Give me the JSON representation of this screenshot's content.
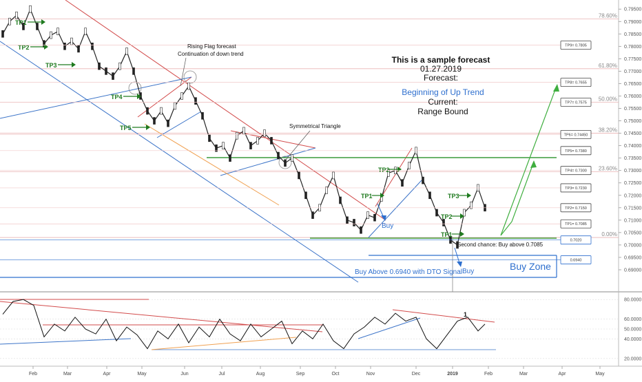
{
  "forecast": {
    "heading": "This is a sample forecast",
    "date": "01.27.2019",
    "forecast_label": "Forecast:",
    "forecast_value": "Beginning of Up Trend",
    "current_label": "Current:",
    "current_value": "Range Bound",
    "accent": "#2e6fce"
  },
  "annotations": {
    "rising_flag": [
      "Rising Flag forecast",
      "Continuation of down trend"
    ],
    "symmetrical_triangle": "Symmetrical Triangle",
    "second_chance": "Second chance: Buy above 0.7085",
    "buy_above": "Buy Above 0.6940 with DTO Signal",
    "buy_zone": "Buy Zone",
    "buy": "Buy",
    "oscillator_mark": "1"
  },
  "chart_data": [
    {
      "type": "line",
      "name": "price",
      "y_axis_ticks": [
        "0.79500",
        "0.79000",
        "0.78500",
        "0.78000",
        "0.77500",
        "0.77000",
        "0.76500",
        "0.76000",
        "0.75500",
        "0.75000",
        "0.74500",
        "0.74000",
        "0.73500",
        "0.73000",
        "0.72500",
        "0.72000",
        "0.71500",
        "0.71000",
        "0.70500",
        "0.70000",
        "0.69500",
        "0.69000"
      ],
      "ylim": [
        0.6875,
        0.797
      ],
      "x_axis_ticks": [
        "Feb",
        "Mar",
        "Apr",
        "May",
        "Jun",
        "Jul",
        "Aug",
        "Sep",
        "Oct",
        "Nov",
        "Dec",
        "2019",
        "Feb",
        "Mar",
        "Apr",
        "May"
      ],
      "series": [
        {
          "x": [
            0,
            10,
            20,
            30,
            40,
            50,
            60,
            70,
            80,
            90,
            100,
            110,
            120,
            130,
            140,
            150,
            160,
            170,
            180,
            190,
            200,
            210,
            220,
            230,
            240,
            250,
            260,
            270,
            280,
            290,
            300,
            310,
            320,
            330,
            340,
            350,
            360,
            370,
            380,
            390,
            400,
            410,
            420,
            430,
            440,
            450,
            460,
            470,
            480,
            490,
            500,
            510,
            520,
            530,
            540,
            550,
            560,
            570,
            580,
            590,
            600,
            610,
            620,
            630,
            640,
            650,
            660,
            670,
            680,
            690,
            700
          ],
          "y": [
            0.785,
            0.79,
            0.7925,
            0.788,
            0.795,
            0.788,
            0.781,
            0.7845,
            0.786,
            0.78,
            0.782,
            0.779,
            0.786,
            0.78,
            0.772,
            0.77,
            0.768,
            0.772,
            0.778,
            0.77,
            0.76,
            0.754,
            0.75,
            0.754,
            0.749,
            0.756,
            0.76,
            0.764,
            0.758,
            0.752,
            0.743,
            0.739,
            0.74,
            0.735,
            0.744,
            0.746,
            0.74,
            0.742,
            0.745,
            0.742,
            0.736,
            0.733,
            0.735,
            0.728,
            0.72,
            0.712,
            0.715,
            0.722,
            0.728,
            0.718,
            0.71,
            0.709,
            0.706,
            0.712,
            0.711,
            0.719,
            0.729,
            0.73,
            0.725,
            0.732,
            0.738,
            0.726,
            0.72,
            0.713,
            0.709,
            0.702,
            0.7,
            0.713,
            0.716,
            0.723,
            0.715
          ]
        }
      ],
      "fib_levels": [
        {
          "label": "78.60%",
          "value": 0.791
        },
        {
          "label": "61.80%",
          "value": 0.771
        },
        {
          "label": "50.00%",
          "value": 0.7575
        },
        {
          "label": "38.20%",
          "value": 0.745
        },
        {
          "label": "23.60%",
          "value": 0.7295
        },
        {
          "label": "0.00%",
          "value": 0.703
        }
      ],
      "price_boxes": [
        {
          "label": "TP9= 0.7805",
          "value": 0.7805,
          "color": "#444444"
        },
        {
          "label": "TP8= 0.7655",
          "value": 0.7655,
          "color": "#444444"
        },
        {
          "label": "TP7= 0.7575",
          "value": 0.7575,
          "color": "#444444"
        },
        {
          "label": "TP6= 0.74450",
          "value": 0.7445,
          "color": "#444444"
        },
        {
          "label": "TP5= 0.7380",
          "value": 0.738,
          "color": "#444444"
        },
        {
          "label": "TP4= 0.7300",
          "value": 0.73,
          "color": "#444444"
        },
        {
          "label": "TP3= 0.7230",
          "value": 0.723,
          "color": "#444444"
        },
        {
          "label": "TP2= 0.7150",
          "value": 0.715,
          "color": "#444444"
        },
        {
          "label": "TP1= 0.7085",
          "value": 0.7085,
          "color": "#444444"
        },
        {
          "label": "0.7020",
          "value": 0.702,
          "color": "#2e6fce"
        },
        {
          "label": "0.6940",
          "value": 0.694,
          "color": "#2e6fce"
        }
      ],
      "tp_labels_left": [
        "TP1",
        "TP2",
        "TP3",
        "TP4",
        "TP5"
      ],
      "tp_labels_right": [
        "TP1",
        "TP2",
        "TP3",
        "TP1",
        "TP2",
        "TP3"
      ]
    },
    {
      "type": "line",
      "name": "oscillator",
      "y_axis_ticks": [
        "80.0000",
        "60.0000",
        "50.0000",
        "40.0000",
        "20.0000"
      ],
      "ylim": [
        15,
        85
      ],
      "series": [
        {
          "x": [
            0,
            15,
            30,
            45,
            60,
            75,
            90,
            105,
            120,
            135,
            150,
            165,
            180,
            195,
            210,
            225,
            240,
            255,
            270,
            285,
            300,
            315,
            330,
            345,
            360,
            375,
            390,
            405,
            420,
            435,
            450,
            465,
            480,
            495,
            510,
            525,
            540,
            555,
            570,
            585,
            600,
            615,
            630,
            645,
            660,
            675,
            690,
            700
          ],
          "y": [
            65,
            78,
            80,
            74,
            42,
            55,
            48,
            62,
            50,
            45,
            60,
            38,
            52,
            44,
            30,
            48,
            40,
            55,
            36,
            52,
            42,
            60,
            45,
            38,
            55,
            42,
            50,
            58,
            35,
            48,
            40,
            55,
            38,
            30,
            45,
            52,
            62,
            55,
            66,
            58,
            62,
            40,
            30,
            44,
            58,
            62,
            48,
            55
          ]
        }
      ]
    }
  ]
}
